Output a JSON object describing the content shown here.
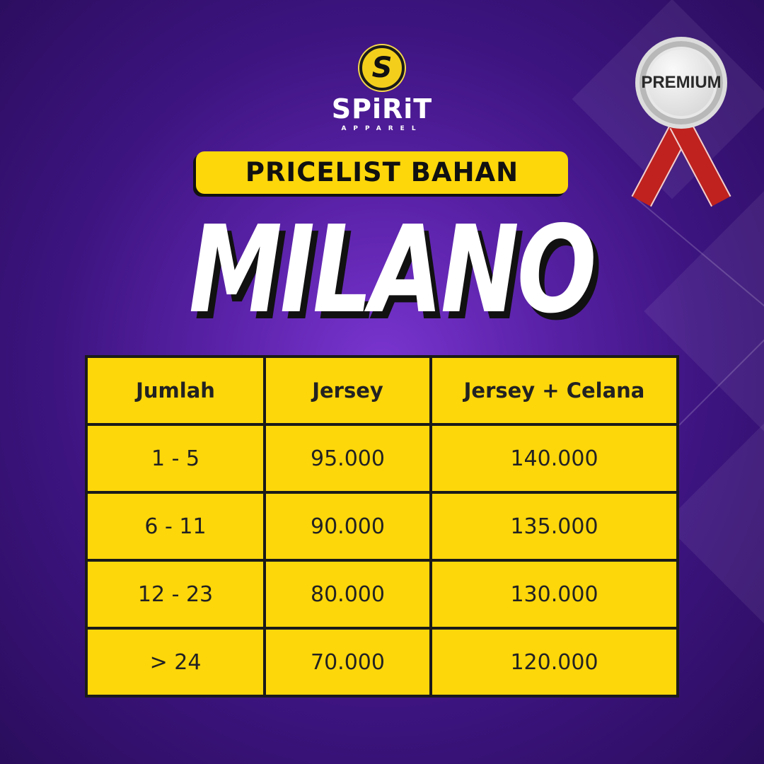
{
  "logo": {
    "brand": "SPiRiT",
    "sub": "APPAREL"
  },
  "badge": {
    "label": "PREMIUM"
  },
  "header": {
    "pill": "PRICELIST BAHAN",
    "title": "MILANO"
  },
  "table": {
    "columns": [
      "Jumlah",
      "Jersey",
      "Jersey + Celana"
    ],
    "rows": [
      [
        "1 - 5",
        "95.000",
        "140.000"
      ],
      [
        "6 - 11",
        "90.000",
        "135.000"
      ],
      [
        "12 - 23",
        "80.000",
        "130.000"
      ],
      [
        "> 24",
        "70.000",
        "120.000"
      ]
    ]
  },
  "colors": {
    "background": "#4a1a96",
    "accent": "#fed70a",
    "text": "#ffffff"
  }
}
